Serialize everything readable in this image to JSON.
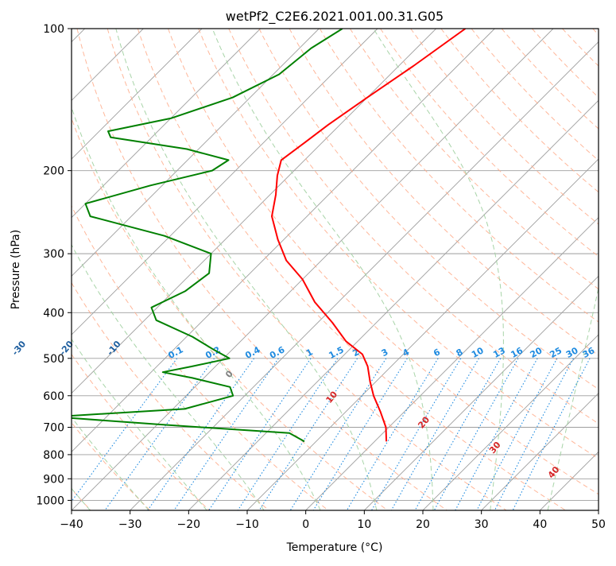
{
  "chart_data": {
    "type": "line",
    "diagram": "skew-T log-p",
    "title": "wetPf2_C2E6.2021.001.00.31.G05",
    "xlabel": "Temperature (°C)",
    "ylabel": "Pressure (hPa)",
    "xlim": [
      -40,
      50
    ],
    "ylim": [
      1050,
      100
    ],
    "y_scale": "log",
    "grid": true,
    "x_ticks": [
      -40,
      -30,
      -20,
      -10,
      0,
      10,
      20,
      30,
      40,
      50
    ],
    "y_ticks": [
      1000,
      900,
      800,
      700,
      600,
      500,
      400,
      300,
      200,
      100
    ],
    "series": [
      {
        "name": "",
        "color": "#ff0000",
        "points": [
          {
            "p": 100,
            "t": -55
          },
          {
            "p": 120,
            "t": -57.5
          },
          {
            "p": 140,
            "t": -60
          },
          {
            "p": 160,
            "t": -62
          },
          {
            "p": 175,
            "t": -63
          },
          {
            "p": 190,
            "t": -64
          },
          {
            "p": 205,
            "t": -62
          },
          {
            "p": 225,
            "t": -59
          },
          {
            "p": 250,
            "t": -56
          },
          {
            "p": 280,
            "t": -51
          },
          {
            "p": 310,
            "t": -46
          },
          {
            "p": 340,
            "t": -40
          },
          {
            "p": 380,
            "t": -34
          },
          {
            "p": 420,
            "t": -27.5
          },
          {
            "p": 460,
            "t": -22
          },
          {
            "p": 490,
            "t": -17
          },
          {
            "p": 520,
            "t": -14
          },
          {
            "p": 560,
            "t": -11
          },
          {
            "p": 600,
            "t": -8
          },
          {
            "p": 650,
            "t": -4
          },
          {
            "p": 700,
            "t": -0.5
          },
          {
            "p": 750,
            "t": 2
          }
        ]
      },
      {
        "name": "",
        "color": "#008000",
        "points": [
          {
            "p": 100,
            "t": -76
          },
          {
            "p": 110,
            "t": -78
          },
          {
            "p": 125,
            "t": -79
          },
          {
            "p": 140,
            "t": -83
          },
          {
            "p": 155,
            "t": -90
          },
          {
            "p": 165,
            "t": -98.5
          },
          {
            "p": 170,
            "t": -97
          },
          {
            "p": 180,
            "t": -82
          },
          {
            "p": 190,
            "t": -73
          },
          {
            "p": 200,
            "t": -74
          },
          {
            "p": 215,
            "t": -82
          },
          {
            "p": 235,
            "t": -90
          },
          {
            "p": 250,
            "t": -87
          },
          {
            "p": 275,
            "t": -71
          },
          {
            "p": 300,
            "t": -60
          },
          {
            "p": 330,
            "t": -57
          },
          {
            "p": 360,
            "t": -58
          },
          {
            "p": 390,
            "t": -61
          },
          {
            "p": 415,
            "t": -58
          },
          {
            "p": 450,
            "t": -49
          },
          {
            "p": 480,
            "t": -43
          },
          {
            "p": 500,
            "t": -39
          },
          {
            "p": 520,
            "t": -44
          },
          {
            "p": 535,
            "t": -48
          },
          {
            "p": 550,
            "t": -42
          },
          {
            "p": 575,
            "t": -34
          },
          {
            "p": 600,
            "t": -32
          },
          {
            "p": 640,
            "t": -38
          },
          {
            "p": 665,
            "t": -59
          },
          {
            "p": 690,
            "t": -40
          },
          {
            "p": 720,
            "t": -16
          },
          {
            "p": 750,
            "t": -12
          }
        ]
      }
    ],
    "dry_adiabats_c": [
      -100,
      -90,
      -80,
      -70,
      -60,
      -50,
      -40,
      -30,
      -20,
      -10
    ],
    "moist_adiabats_c": [
      0,
      10,
      20,
      30,
      40
    ],
    "mixing_ratio_lines_gkg": [
      "0.1",
      "0.2",
      "0.4",
      "0.6",
      "1",
      "1.5",
      "2",
      "3",
      "4",
      "6",
      "8",
      "10",
      "13",
      "16",
      "20",
      "25",
      "30",
      "36"
    ],
    "colors": {
      "isotherm": "#9e9e9e",
      "isobar": "#9e9e9e",
      "dry_adiabat": "#ffaa88",
      "moist_adiabat": "#9fcf9f",
      "mixing_ratio": "#1f8be0",
      "dry_label": "#1f5f9f",
      "moist_label": "#d62728",
      "temperature": "#ff0000",
      "dewpoint": "#008000"
    }
  }
}
